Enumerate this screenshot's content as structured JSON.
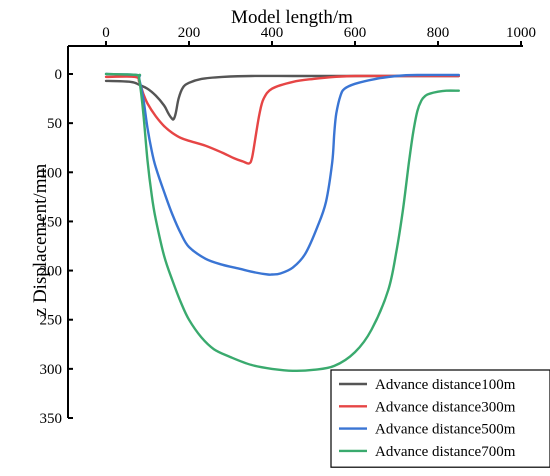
{
  "chart_data": {
    "type": "line",
    "xlabel": "Model length/m",
    "ylabel": "z Displacement/mm",
    "x_axis_position": "top",
    "y_axis_inverted": true,
    "xlim": [
      0,
      1000
    ],
    "ylim": [
      0,
      350
    ],
    "xticks": [
      0,
      200,
      400,
      600,
      800,
      1000
    ],
    "yticks": [
      0,
      50,
      100,
      150,
      200,
      250,
      300,
      350
    ],
    "grid": false,
    "legend_position": "bottom-right",
    "series": [
      {
        "name": "Advance distance100m",
        "color": "#555555",
        "x": [
          0,
          60,
          80,
          100,
          120,
          140,
          150,
          158,
          163,
          168,
          175,
          185,
          200,
          230,
          280,
          350,
          450,
          550,
          650,
          750,
          850
        ],
        "y": [
          7,
          8,
          11,
          15,
          22,
          32,
          40,
          45,
          46,
          40,
          25,
          14,
          9,
          5,
          3,
          2,
          2,
          2,
          2,
          2,
          2
        ]
      },
      {
        "name": "Advance distance300m",
        "color": "#e64545",
        "x": [
          0,
          70,
          80,
          90,
          100,
          120,
          140,
          160,
          180,
          200,
          240,
          280,
          310,
          330,
          345,
          352,
          360,
          370,
          380,
          400,
          450,
          500,
          550,
          600,
          700,
          850
        ],
        "y": [
          3,
          3,
          8,
          20,
          30,
          43,
          53,
          60,
          65,
          68,
          73,
          80,
          86,
          89,
          91,
          85,
          65,
          40,
          25,
          15,
          8,
          5,
          3,
          2,
          2,
          2
        ]
      },
      {
        "name": "Advance distance500m",
        "color": "#3a75d4",
        "x": [
          0,
          75,
          80,
          90,
          100,
          110,
          120,
          140,
          160,
          180,
          200,
          240,
          280,
          320,
          360,
          390,
          400,
          420,
          450,
          480,
          510,
          530,
          545,
          550,
          555,
          565,
          575,
          600,
          650,
          700,
          750,
          850
        ],
        "y": [
          0,
          1,
          5,
          25,
          55,
          78,
          95,
          120,
          143,
          162,
          176,
          188,
          194,
          198,
          202,
          204,
          204,
          203,
          197,
          183,
          155,
          130,
          90,
          60,
          40,
          22,
          15,
          10,
          5,
          2,
          1,
          1
        ]
      },
      {
        "name": "Advance distance700m",
        "color": "#3aaa6e",
        "x": [
          0,
          75,
          80,
          90,
          100,
          110,
          120,
          140,
          160,
          180,
          200,
          230,
          260,
          300,
          350,
          400,
          450,
          500,
          550,
          600,
          640,
          680,
          700,
          715,
          730,
          740,
          750,
          760,
          770,
          780,
          800,
          820,
          850
        ],
        "y": [
          0,
          1,
          5,
          40,
          88,
          123,
          148,
          185,
          210,
          232,
          250,
          268,
          280,
          288,
          296,
          300,
          302,
          301,
          297,
          283,
          260,
          220,
          180,
          140,
          90,
          60,
          38,
          27,
          22,
          20,
          18,
          17,
          17
        ]
      }
    ]
  }
}
